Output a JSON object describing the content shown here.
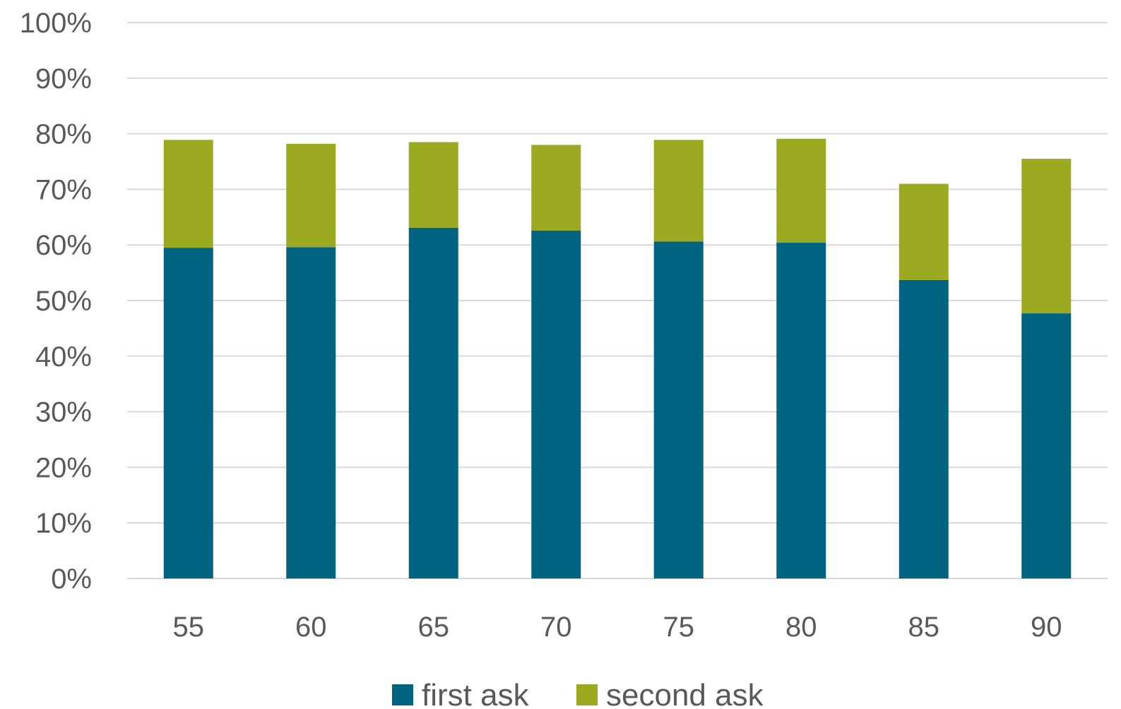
{
  "chart_data": {
    "type": "bar",
    "stacked": true,
    "categories": [
      "55",
      "60",
      "65",
      "70",
      "75",
      "80",
      "85",
      "90"
    ],
    "series": [
      {
        "name": "first ask",
        "color": "#006481",
        "values": [
          59.5,
          59.6,
          63.1,
          62.6,
          60.6,
          60.4,
          53.7,
          47.7
        ]
      },
      {
        "name": "second ask",
        "color": "#9caa22",
        "values": [
          19.4,
          18.6,
          15.4,
          15.4,
          18.3,
          18.7,
          17.3,
          27.8
        ]
      }
    ],
    "y_ticks": [
      "0%",
      "10%",
      "20%",
      "30%",
      "40%",
      "50%",
      "60%",
      "70%",
      "80%",
      "90%",
      "100%"
    ],
    "ylim": [
      0,
      100
    ],
    "grid": true,
    "legend": "bottom"
  }
}
